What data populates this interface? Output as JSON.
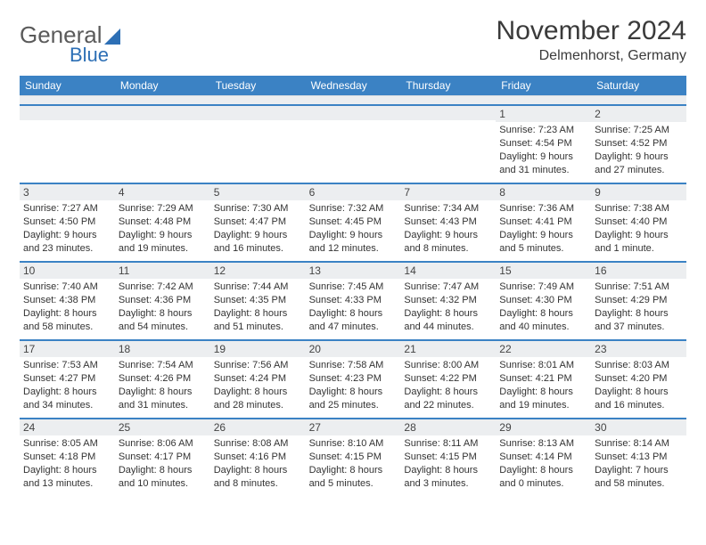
{
  "logo": {
    "word1": "General",
    "word2": "Blue"
  },
  "title": "November 2024",
  "subtitle": "Delmenhorst, Germany",
  "colors": {
    "header_bar": "#3b82c4",
    "daynum_bg": "#eceef0",
    "cell_rule": "#3b82c4",
    "text": "#333333",
    "logo_gray": "#5a5a5a",
    "logo_blue": "#2d6fb5",
    "background": "#ffffff"
  },
  "daysOfWeek": [
    "Sunday",
    "Monday",
    "Tuesday",
    "Wednesday",
    "Thursday",
    "Friday",
    "Saturday"
  ],
  "weeks": [
    [
      null,
      null,
      null,
      null,
      null,
      {
        "n": "1",
        "sunrise": "Sunrise: 7:23 AM",
        "sunset": "Sunset: 4:54 PM",
        "daylight1": "Daylight: 9 hours",
        "daylight2": "and 31 minutes."
      },
      {
        "n": "2",
        "sunrise": "Sunrise: 7:25 AM",
        "sunset": "Sunset: 4:52 PM",
        "daylight1": "Daylight: 9 hours",
        "daylight2": "and 27 minutes."
      }
    ],
    [
      {
        "n": "3",
        "sunrise": "Sunrise: 7:27 AM",
        "sunset": "Sunset: 4:50 PM",
        "daylight1": "Daylight: 9 hours",
        "daylight2": "and 23 minutes."
      },
      {
        "n": "4",
        "sunrise": "Sunrise: 7:29 AM",
        "sunset": "Sunset: 4:48 PM",
        "daylight1": "Daylight: 9 hours",
        "daylight2": "and 19 minutes."
      },
      {
        "n": "5",
        "sunrise": "Sunrise: 7:30 AM",
        "sunset": "Sunset: 4:47 PM",
        "daylight1": "Daylight: 9 hours",
        "daylight2": "and 16 minutes."
      },
      {
        "n": "6",
        "sunrise": "Sunrise: 7:32 AM",
        "sunset": "Sunset: 4:45 PM",
        "daylight1": "Daylight: 9 hours",
        "daylight2": "and 12 minutes."
      },
      {
        "n": "7",
        "sunrise": "Sunrise: 7:34 AM",
        "sunset": "Sunset: 4:43 PM",
        "daylight1": "Daylight: 9 hours",
        "daylight2": "and 8 minutes."
      },
      {
        "n": "8",
        "sunrise": "Sunrise: 7:36 AM",
        "sunset": "Sunset: 4:41 PM",
        "daylight1": "Daylight: 9 hours",
        "daylight2": "and 5 minutes."
      },
      {
        "n": "9",
        "sunrise": "Sunrise: 7:38 AM",
        "sunset": "Sunset: 4:40 PM",
        "daylight1": "Daylight: 9 hours",
        "daylight2": "and 1 minute."
      }
    ],
    [
      {
        "n": "10",
        "sunrise": "Sunrise: 7:40 AM",
        "sunset": "Sunset: 4:38 PM",
        "daylight1": "Daylight: 8 hours",
        "daylight2": "and 58 minutes."
      },
      {
        "n": "11",
        "sunrise": "Sunrise: 7:42 AM",
        "sunset": "Sunset: 4:36 PM",
        "daylight1": "Daylight: 8 hours",
        "daylight2": "and 54 minutes."
      },
      {
        "n": "12",
        "sunrise": "Sunrise: 7:44 AM",
        "sunset": "Sunset: 4:35 PM",
        "daylight1": "Daylight: 8 hours",
        "daylight2": "and 51 minutes."
      },
      {
        "n": "13",
        "sunrise": "Sunrise: 7:45 AM",
        "sunset": "Sunset: 4:33 PM",
        "daylight1": "Daylight: 8 hours",
        "daylight2": "and 47 minutes."
      },
      {
        "n": "14",
        "sunrise": "Sunrise: 7:47 AM",
        "sunset": "Sunset: 4:32 PM",
        "daylight1": "Daylight: 8 hours",
        "daylight2": "and 44 minutes."
      },
      {
        "n": "15",
        "sunrise": "Sunrise: 7:49 AM",
        "sunset": "Sunset: 4:30 PM",
        "daylight1": "Daylight: 8 hours",
        "daylight2": "and 40 minutes."
      },
      {
        "n": "16",
        "sunrise": "Sunrise: 7:51 AM",
        "sunset": "Sunset: 4:29 PM",
        "daylight1": "Daylight: 8 hours",
        "daylight2": "and 37 minutes."
      }
    ],
    [
      {
        "n": "17",
        "sunrise": "Sunrise: 7:53 AM",
        "sunset": "Sunset: 4:27 PM",
        "daylight1": "Daylight: 8 hours",
        "daylight2": "and 34 minutes."
      },
      {
        "n": "18",
        "sunrise": "Sunrise: 7:54 AM",
        "sunset": "Sunset: 4:26 PM",
        "daylight1": "Daylight: 8 hours",
        "daylight2": "and 31 minutes."
      },
      {
        "n": "19",
        "sunrise": "Sunrise: 7:56 AM",
        "sunset": "Sunset: 4:24 PM",
        "daylight1": "Daylight: 8 hours",
        "daylight2": "and 28 minutes."
      },
      {
        "n": "20",
        "sunrise": "Sunrise: 7:58 AM",
        "sunset": "Sunset: 4:23 PM",
        "daylight1": "Daylight: 8 hours",
        "daylight2": "and 25 minutes."
      },
      {
        "n": "21",
        "sunrise": "Sunrise: 8:00 AM",
        "sunset": "Sunset: 4:22 PM",
        "daylight1": "Daylight: 8 hours",
        "daylight2": "and 22 minutes."
      },
      {
        "n": "22",
        "sunrise": "Sunrise: 8:01 AM",
        "sunset": "Sunset: 4:21 PM",
        "daylight1": "Daylight: 8 hours",
        "daylight2": "and 19 minutes."
      },
      {
        "n": "23",
        "sunrise": "Sunrise: 8:03 AM",
        "sunset": "Sunset: 4:20 PM",
        "daylight1": "Daylight: 8 hours",
        "daylight2": "and 16 minutes."
      }
    ],
    [
      {
        "n": "24",
        "sunrise": "Sunrise: 8:05 AM",
        "sunset": "Sunset: 4:18 PM",
        "daylight1": "Daylight: 8 hours",
        "daylight2": "and 13 minutes."
      },
      {
        "n": "25",
        "sunrise": "Sunrise: 8:06 AM",
        "sunset": "Sunset: 4:17 PM",
        "daylight1": "Daylight: 8 hours",
        "daylight2": "and 10 minutes."
      },
      {
        "n": "26",
        "sunrise": "Sunrise: 8:08 AM",
        "sunset": "Sunset: 4:16 PM",
        "daylight1": "Daylight: 8 hours",
        "daylight2": "and 8 minutes."
      },
      {
        "n": "27",
        "sunrise": "Sunrise: 8:10 AM",
        "sunset": "Sunset: 4:15 PM",
        "daylight1": "Daylight: 8 hours",
        "daylight2": "and 5 minutes."
      },
      {
        "n": "28",
        "sunrise": "Sunrise: 8:11 AM",
        "sunset": "Sunset: 4:15 PM",
        "daylight1": "Daylight: 8 hours",
        "daylight2": "and 3 minutes."
      },
      {
        "n": "29",
        "sunrise": "Sunrise: 8:13 AM",
        "sunset": "Sunset: 4:14 PM",
        "daylight1": "Daylight: 8 hours",
        "daylight2": "and 0 minutes."
      },
      {
        "n": "30",
        "sunrise": "Sunrise: 8:14 AM",
        "sunset": "Sunset: 4:13 PM",
        "daylight1": "Daylight: 7 hours",
        "daylight2": "and 58 minutes."
      }
    ]
  ]
}
